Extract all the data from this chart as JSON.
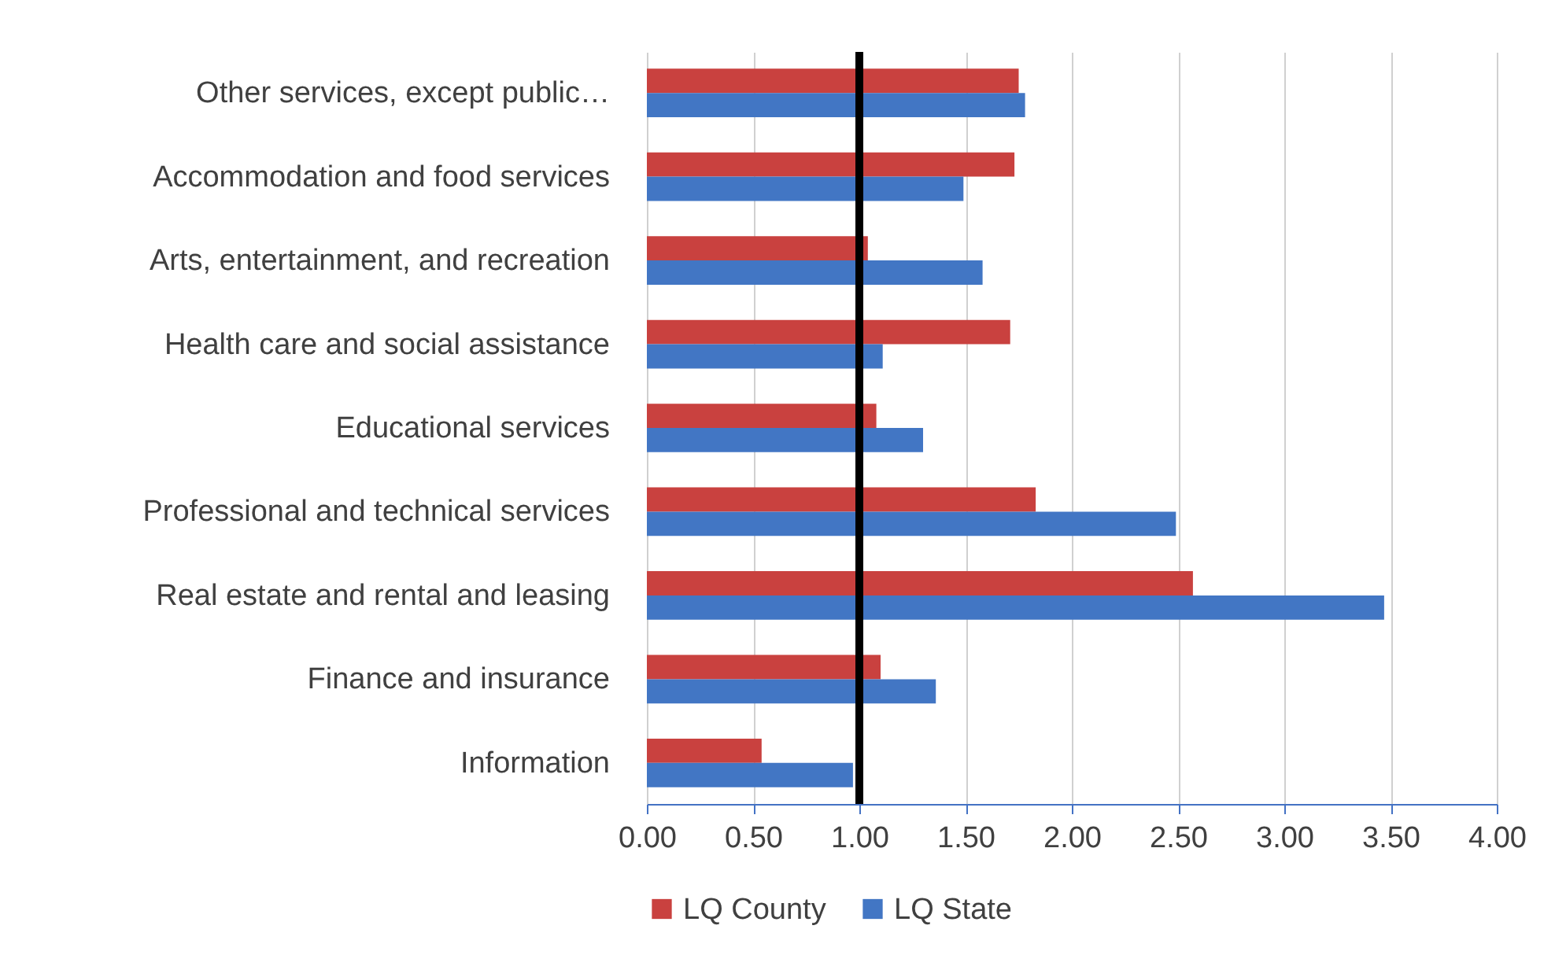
{
  "chart_data": {
    "type": "bar",
    "orientation": "horizontal",
    "categories": [
      "Other services, except public…",
      "Accommodation and food services",
      "Arts, entertainment, and recreation",
      "Health care and social assistance",
      "Educational services",
      "Professional and technical services",
      "Real estate and rental and leasing",
      "Finance and insurance",
      "Information"
    ],
    "series": [
      {
        "name": "LQ County",
        "color": "#c9413f",
        "values": [
          1.75,
          1.73,
          1.04,
          1.71,
          1.08,
          1.83,
          2.57,
          1.1,
          0.54
        ]
      },
      {
        "name": "LQ State",
        "color": "#4276c4",
        "values": [
          1.78,
          1.49,
          1.58,
          1.11,
          1.3,
          2.49,
          3.47,
          1.36,
          0.97
        ]
      }
    ],
    "xlim": [
      0,
      4
    ],
    "xticks": [
      {
        "value": 0,
        "label": "0.00"
      },
      {
        "value": 0.5,
        "label": "0.50"
      },
      {
        "value": 1,
        "label": "1.00"
      },
      {
        "value": 1.5,
        "label": "1.50"
      },
      {
        "value": 2,
        "label": "2.00"
      },
      {
        "value": 2.5,
        "label": "2.50"
      },
      {
        "value": 3,
        "label": "3.00"
      },
      {
        "value": 3.5,
        "label": "3.50"
      },
      {
        "value": 4,
        "label": "4.00"
      }
    ],
    "ref_lines": [
      {
        "axis": "x",
        "value": 1,
        "color": "#000000"
      }
    ],
    "grid": "x",
    "legend": "bottom"
  }
}
